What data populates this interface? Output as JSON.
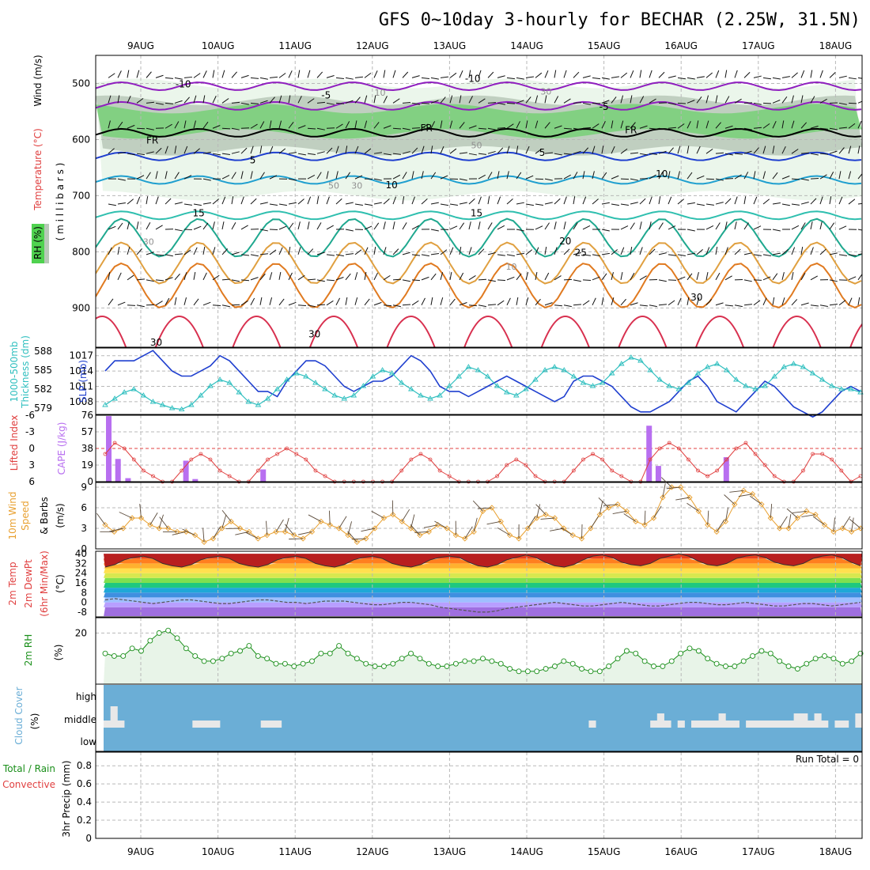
{
  "title": "GFS 0~10day 3-hourly for BECHAR (2.25W, 31.5N)",
  "dates": [
    "9AUG",
    "10AUG",
    "11AUG",
    "12AUG",
    "13AUG",
    "14AUG",
    "15AUG",
    "16AUG",
    "17AUG",
    "18AUG"
  ],
  "colors": {
    "rh": "#4fd24f",
    "rh_light": "#e8f4e8",
    "rh_mid": "#b8c8b8",
    "slp": "#1f3fcf",
    "thickness": "#2fbfbf",
    "cape": "#b86ff0",
    "lifted_index": "#e04040",
    "wind": "#e8a030",
    "rhline": "#1a8f1a",
    "cloud_bg": "#6baed6",
    "cloud_bar": "#e8e8e8"
  },
  "chart_data": [
    {
      "type": "contour",
      "name": "upper",
      "ylabels": {
        "wind": "Wind (m/s)",
        "temp": "Temperature (°C)",
        "rh": "RH (%)",
        "pressure": "( m i l l i b a r s )"
      },
      "y_ticks": [
        500,
        600,
        700,
        800,
        900
      ],
      "ylim": [
        450,
        970
      ],
      "isotherm_labels": [
        {
          "text": "-10",
          "day": 0.55,
          "p": 500
        },
        {
          "text": "-10",
          "day": 4.3,
          "p": 490
        },
        {
          "text": "-5",
          "day": 2.4,
          "p": 520
        },
        {
          "text": "-5",
          "day": 6.0,
          "p": 540
        },
        {
          "text": "FR",
          "day": 0.15,
          "p": 600
        },
        {
          "text": "FR",
          "day": 3.7,
          "p": 578
        },
        {
          "text": "FR",
          "day": 6.35,
          "p": 582
        },
        {
          "text": "5",
          "day": 1.45,
          "p": 635
        },
        {
          "text": "5",
          "day": 5.2,
          "p": 622
        },
        {
          "text": "10",
          "day": 3.25,
          "p": 680
        },
        {
          "text": "10",
          "day": 6.75,
          "p": 660
        },
        {
          "text": "15",
          "day": 0.75,
          "p": 730
        },
        {
          "text": "15",
          "day": 4.35,
          "p": 730
        },
        {
          "text": "20",
          "day": 5.5,
          "p": 780
        },
        {
          "text": "25",
          "day": 5.7,
          "p": 800
        },
        {
          "text": "30",
          "day": 7.2,
          "p": 880
        },
        {
          "text": "30",
          "day": 0.2,
          "p": 960
        },
        {
          "text": "30",
          "day": 2.25,
          "p": 945
        }
      ],
      "rh_labels": [
        {
          "text": "10",
          "day": 3.1,
          "p": 516
        },
        {
          "text": "30",
          "day": 5.25,
          "p": 514
        },
        {
          "text": "50",
          "day": 4.35,
          "p": 610
        },
        {
          "text": "50",
          "day": 2.5,
          "p": 682
        },
        {
          "text": "30",
          "day": 2.8,
          "p": 682
        },
        {
          "text": "30",
          "day": 0.1,
          "p": 782
        },
        {
          "text": "10",
          "day": 4.8,
          "p": 826
        }
      ]
    },
    {
      "type": "line",
      "name": "slp_thickness",
      "ylabel_left": "1000-500mb Thickness (dm)",
      "ylabel_right": "SLP (mb)",
      "left_ticks": [
        "588",
        "585",
        "582",
        "579"
      ],
      "right_ticks": [
        "1017",
        "1014",
        "1011",
        "1008"
      ],
      "series": [
        {
          "name": "SLP",
          "ylim": [
            1005.5,
            1018.5
          ],
          "values": [
            1014,
            1016,
            1016,
            1016,
            1017,
            1018,
            1016,
            1014,
            1013,
            1013,
            1014,
            1015,
            1017,
            1016,
            1014,
            1012,
            1010,
            1010,
            1009,
            1012,
            1014,
            1016,
            1016,
            1015,
            1013,
            1011,
            1010,
            1011,
            1012,
            1012,
            1013,
            1015,
            1017,
            1016,
            1014,
            1011,
            1010,
            1010,
            1009,
            1010,
            1011,
            1012,
            1013,
            1012,
            1011,
            1010,
            1009,
            1008,
            1009,
            1012,
            1013,
            1013,
            1012,
            1011,
            1009,
            1007,
            1006,
            1006,
            1007,
            1008,
            1010,
            1012,
            1013,
            1011,
            1008,
            1007,
            1006,
            1008,
            1010,
            1012,
            1011,
            1009,
            1007,
            1006,
            1005,
            1006,
            1008,
            1010,
            1011,
            1010
          ]
        },
        {
          "name": "Thickness",
          "ylim": [
            578.0,
            588.5
          ],
          "values": [
            579.5,
            580.5,
            581.5,
            582.0,
            581.0,
            580.0,
            579.5,
            579.0,
            578.8,
            579.5,
            581.0,
            582.5,
            583.5,
            583.0,
            581.5,
            580.0,
            579.5,
            580.5,
            582.0,
            583.5,
            584.5,
            584.0,
            583.0,
            582.0,
            581.0,
            580.5,
            581.0,
            582.5,
            584.0,
            585.0,
            584.5,
            583.0,
            582.0,
            581.0,
            580.5,
            581.0,
            582.5,
            584.0,
            585.5,
            585.0,
            584.0,
            582.5,
            581.5,
            581.0,
            582.0,
            583.5,
            585.0,
            585.5,
            585.0,
            584.0,
            583.0,
            582.5,
            583.0,
            584.5,
            586.0,
            587.0,
            586.5,
            585.0,
            583.5,
            582.5,
            582.0,
            583.0,
            584.5,
            585.5,
            586.0,
            585.0,
            583.5,
            582.5,
            582.0,
            582.5,
            584.0,
            585.5,
            586.0,
            585.5,
            584.5,
            583.5,
            582.5,
            582.0,
            582.0,
            581.5
          ]
        }
      ]
    },
    {
      "type": "bar+line",
      "name": "cape_li",
      "ylabel_left": "Lifted Index",
      "ylabel_right": "CAPE (J/kg)",
      "li_ticks": [
        "-6",
        "-3",
        "0",
        "3",
        "6"
      ],
      "cape_ticks": [
        "76",
        "57",
        "38",
        "19",
        "0"
      ],
      "li_values": [
        1,
        -1,
        0,
        2,
        4,
        5,
        6,
        6,
        4,
        2,
        1,
        2,
        4,
        5,
        6,
        6,
        4,
        2,
        1,
        0,
        1,
        2,
        4,
        5,
        6,
        6,
        6,
        6,
        6,
        6,
        6,
        4,
        2,
        1,
        2,
        4,
        5,
        6,
        6,
        6,
        6,
        5,
        3,
        2,
        3,
        5,
        6,
        6,
        6,
        4,
        2,
        1,
        2,
        4,
        5,
        6,
        6,
        2,
        0,
        -1,
        0,
        2,
        4,
        5,
        4,
        2,
        0,
        -1,
        1,
        3,
        5,
        6,
        6,
        4,
        1,
        1,
        2,
        4,
        6,
        5
      ],
      "cape_bars": [
        {
          "day": -0.42,
          "value": 75
        },
        {
          "day": -0.3,
          "value": 26
        },
        {
          "day": -0.17,
          "value": 4
        },
        {
          "day": 0.58,
          "value": 24
        },
        {
          "day": 0.7,
          "value": 3
        },
        {
          "day": 1.58,
          "value": 14
        },
        {
          "day": 6.58,
          "value": 64
        },
        {
          "day": 6.7,
          "value": 18
        },
        {
          "day": 7.58,
          "value": 28
        }
      ]
    },
    {
      "type": "line",
      "name": "wind10m",
      "ylabel": "10m Wind Speed & Barbs (m/s)",
      "ylabel_parts": [
        "10m Wind",
        "Speed",
        "& Barbs",
        "(m/s)"
      ],
      "ticks": [
        "9",
        "6",
        "3",
        "0"
      ],
      "ylim": [
        0,
        9
      ],
      "values": [
        3.5,
        2.5,
        3.0,
        4.5,
        4.5,
        3.5,
        3.0,
        3.0,
        2.5,
        2.5,
        2.0,
        1.0,
        1.5,
        3.0,
        4.0,
        3.0,
        2.5,
        1.5,
        2.0,
        2.5,
        2.5,
        2.0,
        1.5,
        2.5,
        4.0,
        3.5,
        3.0,
        2.0,
        1.0,
        1.5,
        3.0,
        4.5,
        5.0,
        4.0,
        3.0,
        2.0,
        2.5,
        3.5,
        3.0,
        2.0,
        1.5,
        2.5,
        5.5,
        6.0,
        4.0,
        2.0,
        1.5,
        3.0,
        4.5,
        5.0,
        4.5,
        3.0,
        2.0,
        1.5,
        3.0,
        5.0,
        6.0,
        6.5,
        5.5,
        4.0,
        3.5,
        4.5,
        7.5,
        9.0,
        9.0,
        7.5,
        5.5,
        3.5,
        2.5,
        4.0,
        6.5,
        8.5,
        8.0,
        6.5,
        4.5,
        3.0,
        3.0,
        4.5,
        5.5,
        5.0,
        3.5,
        2.5,
        3.0,
        2.5,
        3.0
      ]
    },
    {
      "type": "area",
      "name": "temp2m",
      "ylabel": "2m Temp 2m DewPt (6hr Min/Max) (°C)",
      "ylabel_parts": [
        "2m Temp",
        "2m DewPt",
        "(6hr Min/Max)",
        "(°C)"
      ],
      "ticks": [
        "40",
        "32",
        "24",
        "16",
        "8",
        "0",
        "-8"
      ],
      "ylim": [
        -12,
        42
      ],
      "temp_values": [
        29,
        31,
        35,
        37,
        38,
        36,
        32,
        30,
        29,
        31,
        35,
        37,
        38,
        36,
        32,
        30,
        29,
        31,
        35,
        37,
        38,
        36,
        32,
        30,
        29,
        31,
        35,
        37,
        38,
        36,
        32,
        30,
        29,
        31,
        35,
        37,
        38,
        37,
        33,
        30,
        29,
        31,
        35,
        37,
        39,
        37,
        33,
        30,
        29,
        31,
        35,
        38,
        39,
        37,
        33,
        31,
        30,
        32,
        36,
        38,
        40,
        38,
        34,
        31,
        30,
        32,
        36,
        38,
        39,
        37,
        33,
        31,
        30,
        32,
        36,
        38,
        39,
        37,
        33,
        30
      ],
      "dewpt_values": [
        2,
        3,
        2,
        1,
        0,
        -1,
        0,
        1,
        2,
        2,
        1,
        0,
        -1,
        -1,
        0,
        1,
        2,
        2,
        1,
        0,
        0,
        -1,
        0,
        1,
        1,
        1,
        0,
        -1,
        -2,
        -2,
        -1,
        0,
        0,
        -1,
        -2,
        -4,
        -5,
        -6,
        -7,
        -8,
        -8,
        -7,
        -5,
        -4,
        -3,
        -2,
        -1,
        0,
        -1,
        -2,
        -3,
        -3,
        -2,
        -1,
        0,
        -1,
        -2,
        -3,
        -3,
        -2,
        -1,
        0,
        0,
        -1,
        -2,
        -2,
        -1,
        0,
        -1,
        -2,
        -3,
        -3,
        -2,
        -1,
        -1,
        -2,
        -3,
        -2,
        -1,
        0
      ]
    },
    {
      "type": "area",
      "name": "rh2m",
      "ylabel": "2m RH (%)",
      "ylabel_parts": [
        "2m RH",
        "(%)"
      ],
      "ticks": [
        "20"
      ],
      "ylim": [
        0,
        26
      ],
      "values": [
        12,
        11,
        11,
        14,
        13,
        17,
        20,
        21,
        18,
        14,
        11,
        9,
        9,
        10,
        12,
        13,
        15,
        11,
        10,
        8,
        8,
        7,
        8,
        9,
        12,
        12,
        15,
        12,
        10,
        8,
        7,
        7,
        8,
        10,
        12,
        10,
        8,
        7,
        7,
        8,
        9,
        9,
        10,
        9,
        8,
        6,
        5,
        5,
        5,
        6,
        7,
        9,
        8,
        6,
        5,
        5,
        7,
        10,
        13,
        12,
        9,
        7,
        7,
        9,
        12,
        14,
        13,
        10,
        8,
        7,
        7,
        9,
        11,
        13,
        12,
        9,
        7,
        6,
        8,
        10,
        11,
        10,
        8,
        9,
        12
      ]
    },
    {
      "type": "bar",
      "name": "cloud",
      "ylabel": "Cloud Cover (%)",
      "ylabel_parts": [
        "Cloud Cover",
        "(%)"
      ],
      "levels": [
        "high",
        "middle",
        "low"
      ],
      "middle_values": [
        1,
        3,
        1,
        0,
        0,
        0,
        0,
        0,
        0,
        0,
        0,
        0,
        0,
        1,
        1,
        1,
        1,
        0,
        0,
        0,
        0,
        0,
        0,
        1,
        1,
        1,
        0,
        0,
        0,
        0,
        0,
        0,
        0,
        0,
        0,
        0,
        0,
        0,
        0,
        0,
        0,
        0,
        0,
        0,
        0,
        0,
        0,
        0,
        0,
        0,
        0,
        0,
        0,
        0,
        0,
        0,
        0,
        0,
        0,
        0,
        0,
        0,
        0,
        0,
        0,
        0,
        0,
        0,
        0,
        0,
        0,
        1,
        0,
        0,
        0,
        0,
        0,
        0,
        0,
        0,
        1,
        2,
        1,
        0,
        1,
        0,
        1,
        1,
        1,
        1,
        2,
        1,
        1,
        0,
        1,
        1,
        1,
        1,
        1,
        1,
        1,
        2,
        2,
        1,
        2,
        1,
        0,
        1,
        1,
        0,
        2
      ]
    },
    {
      "type": "bar",
      "name": "precip",
      "ylabel": "3hr Precip (mm)",
      "ylabel_left": [
        "Total / Rain",
        "Convective"
      ],
      "run_total": "Run Total = 0",
      "ticks": [
        "0.8",
        "0.6",
        "0.4",
        "0.2",
        "0"
      ],
      "ylim": [
        0,
        0.95
      ],
      "values": []
    }
  ]
}
